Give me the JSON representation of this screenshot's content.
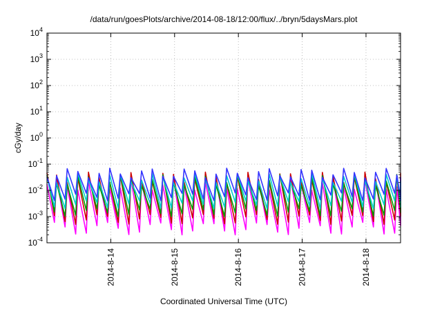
{
  "chart_data": {
    "type": "line",
    "title": "/data/run/goesPlots/archive/2014-08-18/12:00/flux/../bryn/5daysMars.plot",
    "xlabel": "Coordinated Universal Time (UTC)",
    "ylabel": "cGy/day",
    "y_scale": "log",
    "ylim": [
      0.0001,
      10000
    ],
    "xlim": [
      "2014-08-13 00:00",
      "2014-08-18 13:00"
    ],
    "grid": true,
    "x_ticks": [
      "2014-8-14",
      "2014-8-15",
      "2014-8-16",
      "2014-8-17",
      "2014-8-18"
    ],
    "y_ticks": [
      {
        "base": "10",
        "exp": "-4"
      },
      {
        "base": "10",
        "exp": "-3"
      },
      {
        "base": "10",
        "exp": "-2"
      },
      {
        "base": "10",
        "exp": "-1"
      },
      {
        "base": "10",
        "exp": "0"
      },
      {
        "base": "10",
        "exp": "1"
      },
      {
        "base": "10",
        "exp": "2"
      },
      {
        "base": "10",
        "exp": "3"
      },
      {
        "base": "10",
        "exp": "4"
      }
    ],
    "series_colors": [
      "#ff00ff",
      "#cc0000",
      "#009900",
      "#00cccc",
      "#3333ff"
    ],
    "pattern": "sawtooth, ~6 cycles per day",
    "series": [
      {
        "color": "#ff00ff",
        "peak_range": [
          0.01,
          0.03
        ],
        "trough_range": [
          0.0002,
          0.0006
        ]
      },
      {
        "color": "#cc0000",
        "peak_range": [
          0.02,
          0.05
        ],
        "trough_range": [
          0.0005,
          0.0012
        ]
      },
      {
        "color": "#009900",
        "peak_range": [
          0.015,
          0.04
        ],
        "trough_range": [
          0.001,
          0.002
        ]
      },
      {
        "color": "#00cccc",
        "peak_range": [
          0.02,
          0.045
        ],
        "trough_range": [
          0.002,
          0.004
        ]
      },
      {
        "color": "#3333ff",
        "peak_range": [
          0.03,
          0.07
        ],
        "trough_range": [
          0.004,
          0.008
        ]
      }
    ]
  }
}
